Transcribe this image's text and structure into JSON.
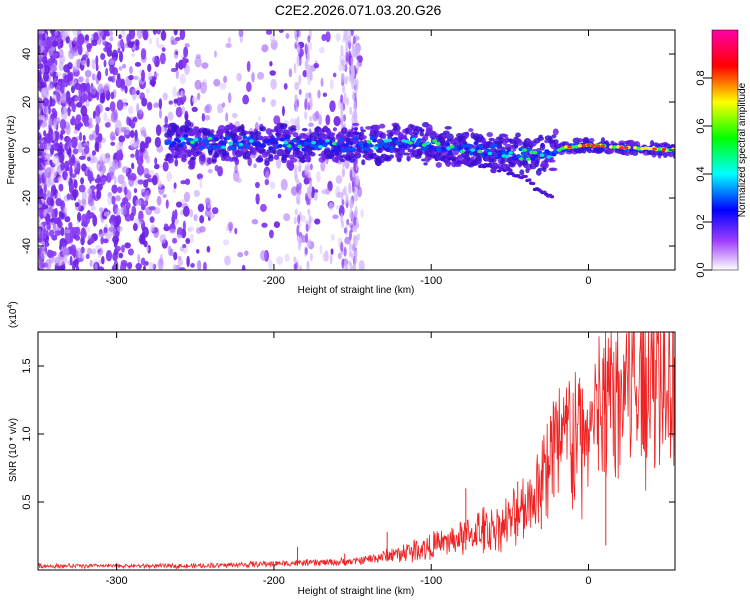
{
  "title": "C2E2.2026.071.03.20.G26",
  "chart_data": [
    {
      "type": "heatmap",
      "name": "spectrogram",
      "xlabel": "Height of straight line (km)",
      "ylabel": "Frequency (Hz)",
      "xlim": [
        -350,
        55
      ],
      "ylim": [
        -50,
        50
      ],
      "xticks": [
        -300,
        -200,
        -100,
        0
      ],
      "yticks": [
        -40,
        -20,
        0,
        20,
        40
      ],
      "colorbar": {
        "label": "Normalized spectral amplitude",
        "range": [
          0.0,
          1.0
        ],
        "ticks": [
          0.0,
          0.2,
          0.4,
          0.6,
          0.8
        ],
        "tick_labels": [
          "0.0",
          "0.2",
          "0.4",
          "0.6",
          "0.8"
        ],
        "colors": [
          "#ffffff",
          "#8800ff",
          "#0000ff",
          "#00ffff",
          "#00ff00",
          "#ffff00",
          "#ff0000",
          "#ff00aa"
        ]
      },
      "signal_track": [
        {
          "x": -265,
          "y": 4
        },
        {
          "x": -240,
          "y": 3
        },
        {
          "x": -200,
          "y": 3
        },
        {
          "x": -160,
          "y": 2
        },
        {
          "x": -120,
          "y": 3
        },
        {
          "x": -80,
          "y": 1
        },
        {
          "x": -50,
          "y": -1
        },
        {
          "x": -30,
          "y": -3
        },
        {
          "x": -15,
          "y": 1
        },
        {
          "x": 0,
          "y": 2
        },
        {
          "x": 20,
          "y": 1
        },
        {
          "x": 55,
          "y": 0
        }
      ],
      "secondary_track": [
        {
          "x": -100,
          "y": -3
        },
        {
          "x": -60,
          "y": -7
        },
        {
          "x": -40,
          "y": -12
        },
        {
          "x": -30,
          "y": -18
        },
        {
          "x": -22,
          "y": -20
        }
      ]
    },
    {
      "type": "line",
      "name": "snr",
      "xlabel": "Height of straight line (km)",
      "ylabel": "SNR (10 * v/v)",
      "y_multiplier": "(x10",
      "y_multiplier_exp": "4",
      "y_multiplier_close": ")",
      "xlim": [
        -350,
        55
      ],
      "ylim": [
        0,
        1.75
      ],
      "xticks": [
        -300,
        -200,
        -100,
        0
      ],
      "yticks": [
        0.5,
        1.0,
        1.5
      ],
      "ytick_labels": [
        "0.5",
        "1.0",
        "1.5"
      ],
      "color": "#ee2222",
      "envelope": [
        {
          "x": -350,
          "y": 0.03
        },
        {
          "x": -250,
          "y": 0.03
        },
        {
          "x": -190,
          "y": 0.05
        },
        {
          "x": -150,
          "y": 0.06
        },
        {
          "x": -130,
          "y": 0.1
        },
        {
          "x": -110,
          "y": 0.15
        },
        {
          "x": -90,
          "y": 0.2
        },
        {
          "x": -70,
          "y": 0.28
        },
        {
          "x": -50,
          "y": 0.35
        },
        {
          "x": -35,
          "y": 0.55
        },
        {
          "x": -25,
          "y": 0.85
        },
        {
          "x": -15,
          "y": 1.0
        },
        {
          "x": -5,
          "y": 0.95
        },
        {
          "x": 5,
          "y": 1.1
        },
        {
          "x": 15,
          "y": 1.3
        },
        {
          "x": 30,
          "y": 1.45
        },
        {
          "x": 45,
          "y": 1.55
        },
        {
          "x": 55,
          "y": 1.45
        }
      ],
      "spikes": [
        {
          "x": -185,
          "y": 0.17
        },
        {
          "x": -155,
          "y": 0.12
        },
        {
          "x": -128,
          "y": 0.28
        },
        {
          "x": -78,
          "y": 0.6
        },
        {
          "x": -45,
          "y": 0.65
        },
        {
          "x": -22,
          "y": 1.2
        },
        {
          "x": 10,
          "y": 1.35
        },
        {
          "x": 35,
          "y": 1.75
        }
      ],
      "dips": [
        {
          "x": -30,
          "y": 0.3
        },
        {
          "x": 11,
          "y": 0.18
        }
      ]
    }
  ]
}
